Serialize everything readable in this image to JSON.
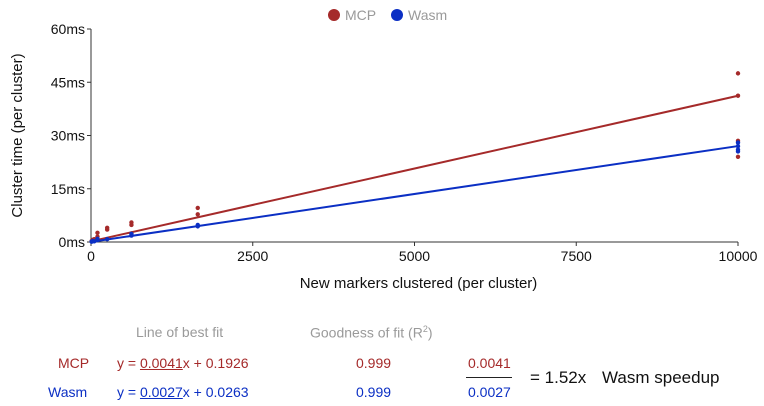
{
  "colors": {
    "mcp": "#a52a2a",
    "wasm": "#0b2fc4",
    "axis": "#333333",
    "label": "#111111"
  },
  "chart_data": {
    "type": "scatter",
    "xlabel": "New markers clustered (per cluster)",
    "ylabel": "Cluster time (per cluster)",
    "xlim": [
      0,
      10000
    ],
    "ylim": [
      0,
      60
    ],
    "x_ticks": [
      0,
      2500,
      5000,
      7500,
      10000
    ],
    "x_tick_labels": [
      "0",
      "2500",
      "5000",
      "7500",
      "10000"
    ],
    "y_ticks": [
      0,
      15,
      30,
      45,
      60
    ],
    "y_tick_labels": [
      "0ms",
      "15ms",
      "30ms",
      "45ms",
      "60ms"
    ],
    "legend_position": "top-center",
    "grid": false,
    "series": [
      {
        "name": "MCP",
        "color": "#a52a2a",
        "points": [
          [
            10,
            0.3
          ],
          [
            25,
            0.6
          ],
          [
            50,
            0.8
          ],
          [
            100,
            2.6
          ],
          [
            100,
            1.5
          ],
          [
            250,
            4.0
          ],
          [
            250,
            3.5
          ],
          [
            625,
            5.5
          ],
          [
            625,
            4.8
          ],
          [
            625,
            2.4
          ],
          [
            1650,
            9.6
          ],
          [
            1650,
            7.8
          ],
          [
            10000,
            47.5
          ],
          [
            10000,
            41.2
          ],
          [
            10000,
            28.5
          ],
          [
            10000,
            24.0
          ]
        ],
        "fit": {
          "slope": 0.0041,
          "intercept": 0.1926
        }
      },
      {
        "name": "Wasm",
        "color": "#0b2fc4",
        "points": [
          [
            10,
            0.1
          ],
          [
            25,
            0.3
          ],
          [
            50,
            0.2
          ],
          [
            100,
            0.5
          ],
          [
            100,
            0.9
          ],
          [
            250,
            0.8
          ],
          [
            625,
            1.8
          ],
          [
            625,
            2.3
          ],
          [
            1650,
            4.4
          ],
          [
            1650,
            4.8
          ],
          [
            10000,
            28.0
          ],
          [
            10000,
            27.0
          ],
          [
            10000,
            26.0
          ],
          [
            10000,
            25.5
          ]
        ],
        "fit": {
          "slope": 0.0027,
          "intercept": 0.0263
        }
      }
    ]
  },
  "fit_table": {
    "col_fit_header": "Line of best fit",
    "col_r2_header": "Goodness of fit (R",
    "col_r2_sup": "2",
    "col_r2_close": ")",
    "rows": [
      {
        "name": "MCP",
        "eq_prefix": "y = ",
        "slope": "0.0041",
        "eq_suffix": "x + 0.1926",
        "r2": "0.999"
      },
      {
        "name": "Wasm",
        "eq_prefix": "y = ",
        "slope": "0.0027",
        "eq_suffix": "x + 0.0263",
        "r2": "0.999"
      }
    ],
    "ratio_numerator": "0.0041",
    "ratio_denominator": "0.0027",
    "speedup_value": "= 1.52x",
    "speedup_label": "Wasm speedup"
  }
}
